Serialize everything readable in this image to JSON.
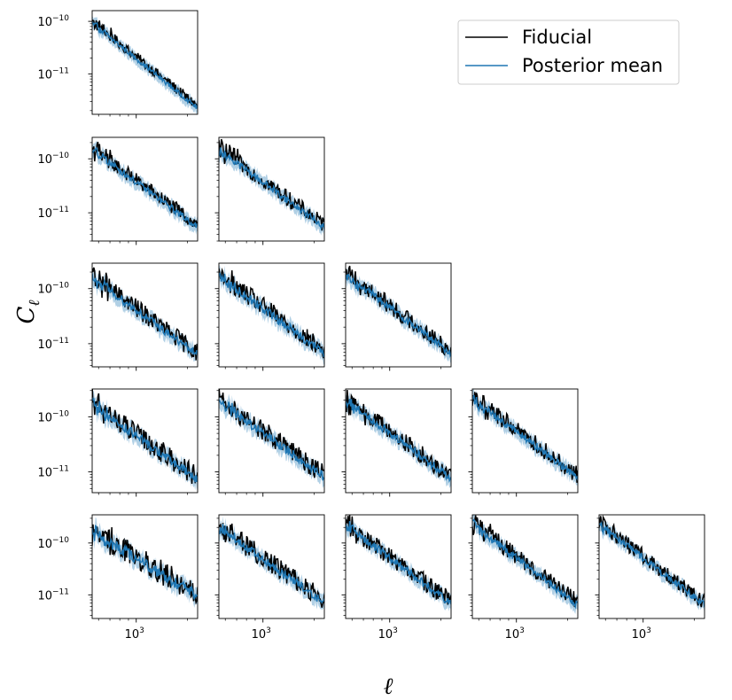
{
  "chart_data": {
    "type": "line",
    "layout": "lower-triangular grid of 5 x 5 panels (15 panels)",
    "xlabel": "ℓ",
    "ylabel": "C",
    "ylabel_subscript": "ℓ",
    "xscale": "log",
    "yscale": "log",
    "xlim": [
      550,
      2300
    ],
    "x_tick_label": {
      "base": "10",
      "exp": "3"
    },
    "y_tick_labels": [
      {
        "base": "10",
        "exp": "−10",
        "value": 1e-10
      },
      {
        "base": "10",
        "exp": "−11",
        "value": 1e-11
      }
    ],
    "legend": {
      "placement": "top-right",
      "entries": [
        {
          "label": "Fiducial",
          "color": "#000000"
        },
        {
          "label": "Posterior mean",
          "color": "#1f77b4"
        }
      ]
    },
    "band_color": "#1f77b4",
    "band_alpha": 0.35,
    "series_names": [
      "Fiducial",
      "Posterior mean"
    ],
    "panels": [
      {
        "row": 0,
        "col": 0,
        "ylim": [
          1.7e-12,
          1.6e-10
        ],
        "amp": 8e-11,
        "slope": -2.6,
        "noise": 0.1
      },
      {
        "row": 1,
        "col": 0,
        "ylim": [
          3e-12,
          2.5e-10
        ],
        "amp": 1.3e-10,
        "slope": -2.3,
        "noise": 0.14
      },
      {
        "row": 1,
        "col": 1,
        "ylim": [
          3e-12,
          2.5e-10
        ],
        "amp": 1.3e-10,
        "slope": -2.3,
        "noise": 0.15
      },
      {
        "row": 2,
        "col": 0,
        "ylim": [
          3.8e-12,
          2.9e-10
        ],
        "amp": 1.4e-10,
        "slope": -2.25,
        "noise": 0.17
      },
      {
        "row": 2,
        "col": 1,
        "ylim": [
          3.8e-12,
          2.9e-10
        ],
        "amp": 1.5e-10,
        "slope": -2.25,
        "noise": 0.18
      },
      {
        "row": 2,
        "col": 2,
        "ylim": [
          3.8e-12,
          2.9e-10
        ],
        "amp": 1.6e-10,
        "slope": -2.3,
        "noise": 0.16
      },
      {
        "row": 3,
        "col": 0,
        "ylim": [
          4.2e-12,
          3.2e-10
        ],
        "amp": 1.5e-10,
        "slope": -2.2,
        "noise": 0.2
      },
      {
        "row": 3,
        "col": 1,
        "ylim": [
          4.2e-12,
          3.2e-10
        ],
        "amp": 1.7e-10,
        "slope": -2.2,
        "noise": 0.19
      },
      {
        "row": 3,
        "col": 2,
        "ylim": [
          4.2e-12,
          3.2e-10
        ],
        "amp": 1.8e-10,
        "slope": -2.3,
        "noise": 0.17
      },
      {
        "row": 3,
        "col": 3,
        "ylim": [
          4.2e-12,
          3.2e-10
        ],
        "amp": 1.9e-10,
        "slope": -2.3,
        "noise": 0.16
      },
      {
        "row": 4,
        "col": 0,
        "ylim": [
          3.5e-12,
          3.5e-10
        ],
        "amp": 1.5e-10,
        "slope": -2.0,
        "noise": 0.24
      },
      {
        "row": 4,
        "col": 1,
        "ylim": [
          3.5e-12,
          3.5e-10
        ],
        "amp": 1.7e-10,
        "slope": -2.3,
        "noise": 0.2
      },
      {
        "row": 4,
        "col": 2,
        "ylim": [
          3.5e-12,
          3.5e-10
        ],
        "amp": 1.9e-10,
        "slope": -2.4,
        "noise": 0.18
      },
      {
        "row": 4,
        "col": 3,
        "ylim": [
          3.5e-12,
          3.5e-10
        ],
        "amp": 2e-10,
        "slope": -2.5,
        "noise": 0.17
      },
      {
        "row": 4,
        "col": 4,
        "ylim": [
          3.5e-12,
          3.5e-10
        ],
        "amp": 2e-10,
        "slope": -2.5,
        "noise": 0.15
      }
    ]
  }
}
